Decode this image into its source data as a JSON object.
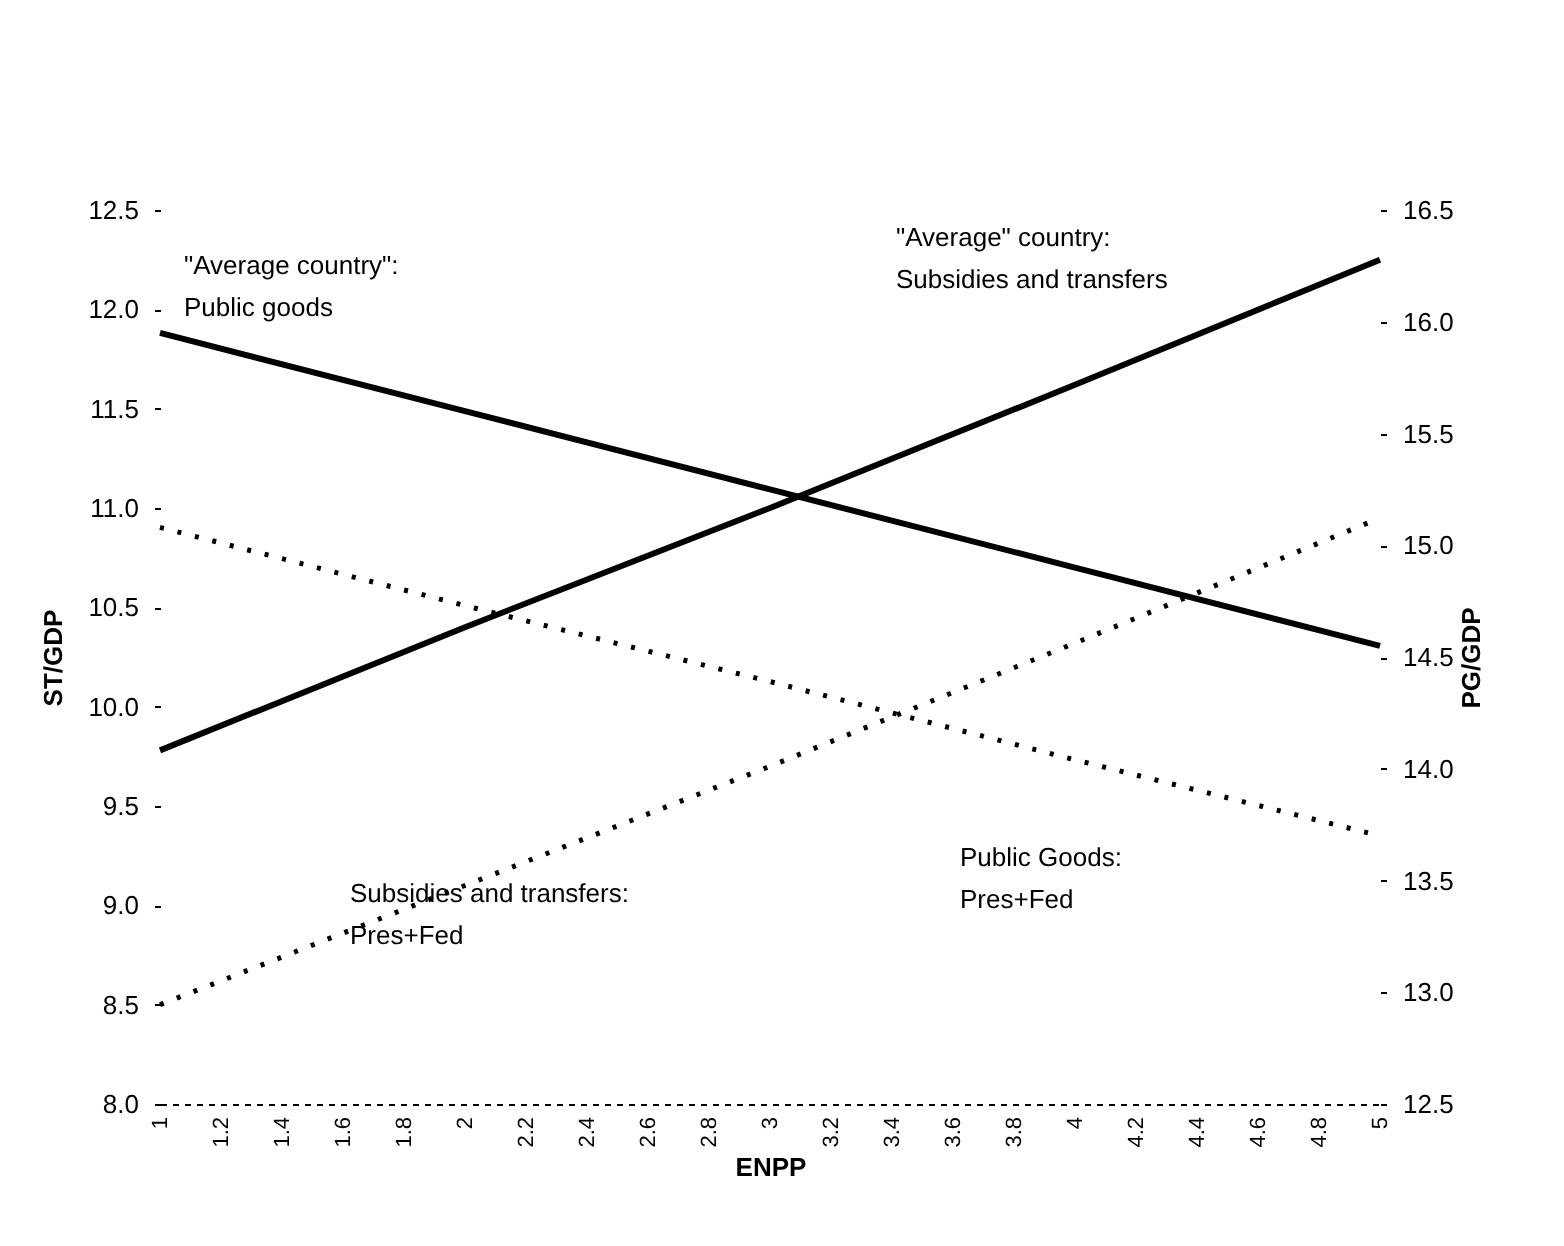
{
  "chart_data": {
    "type": "line",
    "xlabel": "ENPP",
    "ylabel": "ST/GDP",
    "y2label": "PG/GDP",
    "x": [
      1,
      2,
      3,
      4,
      5
    ],
    "xlim": [
      1,
      5
    ],
    "xticks": [
      1,
      1.2,
      1.4,
      1.6,
      1.8,
      2,
      2.2,
      2.4,
      2.6,
      2.8,
      3,
      3.2,
      3.4,
      3.6,
      3.8,
      4,
      4.2,
      4.4,
      4.6,
      4.8,
      5
    ],
    "ylim": [
      8,
      12.5
    ],
    "yticks": [
      {
        "value": 8,
        "label": "8.0"
      },
      8.5,
      {
        "value": 9,
        "label": "9.0"
      },
      9.5,
      {
        "value": 10,
        "label": "10.0"
      },
      10.5,
      {
        "value": 11,
        "label": "11.0"
      },
      11.5,
      {
        "value": 12,
        "label": "12.0"
      },
      12.5
    ],
    "y2lim": [
      12.5,
      16.5
    ],
    "y2ticks": [
      12.5,
      {
        "value": 13,
        "label": "13.0"
      },
      13.5,
      {
        "value": 14,
        "label": "14.0"
      },
      14.5,
      {
        "value": 15,
        "label": "15.0"
      },
      15.5,
      {
        "value": 16,
        "label": "16.0"
      },
      16.5
    ],
    "series": [
      {
        "name": "\"Average country\": Public goods",
        "color": "#000000",
        "axis": "y2",
        "line_style": "solid",
        "values": [
          15.95,
          15.6,
          15.25,
          14.9,
          14.55
        ]
      },
      {
        "name": "\"Average\" country: Subsidies and transfers",
        "color": "#000000",
        "line_style": "solid",
        "values": [
          9.78,
          10.4,
          11.0,
          11.62,
          12.25
        ]
      },
      {
        "name": "Public Goods: Pres+Fed",
        "color": "#000000",
        "axis": "y2",
        "line_style": "dotted",
        "values": [
          15.08,
          14.73,
          14.39,
          14.04,
          13.7
        ]
      },
      {
        "name": "Subsidies and transfers: Pres+Fed",
        "color": "#000000",
        "line_style": "dotted",
        "values": [
          8.5,
          9.1,
          9.7,
          10.32,
          10.95
        ]
      }
    ]
  }
}
